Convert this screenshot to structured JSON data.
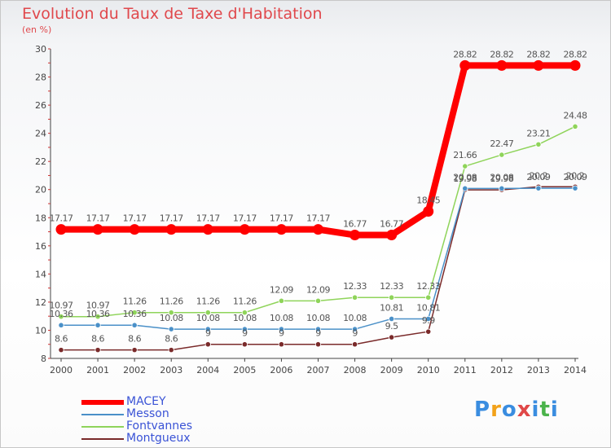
{
  "title": "Evolution du Taux de Taxe d'Habitation",
  "subtitle": "(en %)",
  "logo": {
    "text": "Proxiti",
    "colors": [
      "#3a8de0",
      "#f2a21a",
      "#3a8de0",
      "#e04848",
      "#3a8de0",
      "#4bb34b",
      "#3a8de0"
    ]
  },
  "chart_data": {
    "type": "line",
    "title": "Evolution du Taux de Taxe d'Habitation",
    "ylabel": "(en %)",
    "xlabel": "",
    "x": [
      "2000",
      "2001",
      "2002",
      "2003",
      "2004",
      "2005",
      "2006",
      "2007",
      "2008",
      "2009",
      "2010",
      "2011",
      "2012",
      "2013",
      "2014"
    ],
    "ylim": [
      8,
      30
    ],
    "yticks": [
      8,
      10,
      12,
      14,
      16,
      18,
      20,
      22,
      24,
      26,
      28,
      30
    ],
    "grid": false,
    "legend_position": "bottom-left",
    "series": [
      {
        "name": "MACEY",
        "color": "#ff0000",
        "values": [
          17.17,
          17.17,
          17.17,
          17.17,
          17.17,
          17.17,
          17.17,
          17.17,
          16.77,
          16.77,
          18.45,
          28.82,
          28.82,
          28.82,
          28.82
        ],
        "labels": [
          "17.17",
          "17.17",
          "17.17",
          "17.17",
          "17.17",
          "17.17",
          "17.17",
          "17.17",
          "16.77",
          "16.77",
          "18.45",
          "28.82",
          "28.82",
          "28.82",
          "28.82"
        ]
      },
      {
        "name": "Messon",
        "color": "#4a90c8",
        "values": [
          10.36,
          10.36,
          10.36,
          10.08,
          10.08,
          10.08,
          10.08,
          10.08,
          10.08,
          10.81,
          10.81,
          20.08,
          20.08,
          20.09,
          20.09
        ],
        "labels": [
          "10.36",
          "10.36",
          "10.36",
          "10.08",
          "10.08",
          "10.08",
          "10.08",
          "10.08",
          "10.08",
          "10.81",
          "10.81",
          "20.08",
          "20.08",
          "20.09",
          "20.09"
        ]
      },
      {
        "name": "Fontvannes",
        "color": "#8fd45a",
        "values": [
          10.97,
          10.97,
          11.26,
          11.26,
          11.26,
          11.26,
          12.09,
          12.09,
          12.33,
          12.33,
          12.33,
          21.66,
          22.47,
          23.21,
          24.48
        ],
        "labels": [
          "10.97",
          "10.97",
          "11.26",
          "11.26",
          "11.26",
          "11.26",
          "12.09",
          "12.09",
          "12.33",
          "12.33",
          "12.33",
          "21.66",
          "22.47",
          "23.21",
          "24.48"
        ]
      },
      {
        "name": "Montgueux",
        "color": "#7a2a2a",
        "values": [
          8.6,
          8.6,
          8.6,
          8.6,
          9,
          9,
          9,
          9,
          9,
          9.5,
          9.9,
          19.98,
          19.98,
          20.2,
          20.2
        ],
        "labels": [
          "8.6",
          "8.6",
          "8.6",
          "8.6",
          "9",
          "9",
          "9",
          "9",
          "9",
          "9.5",
          "9.9",
          "19.98",
          "19.98",
          "20.2",
          "20.2"
        ]
      }
    ]
  }
}
